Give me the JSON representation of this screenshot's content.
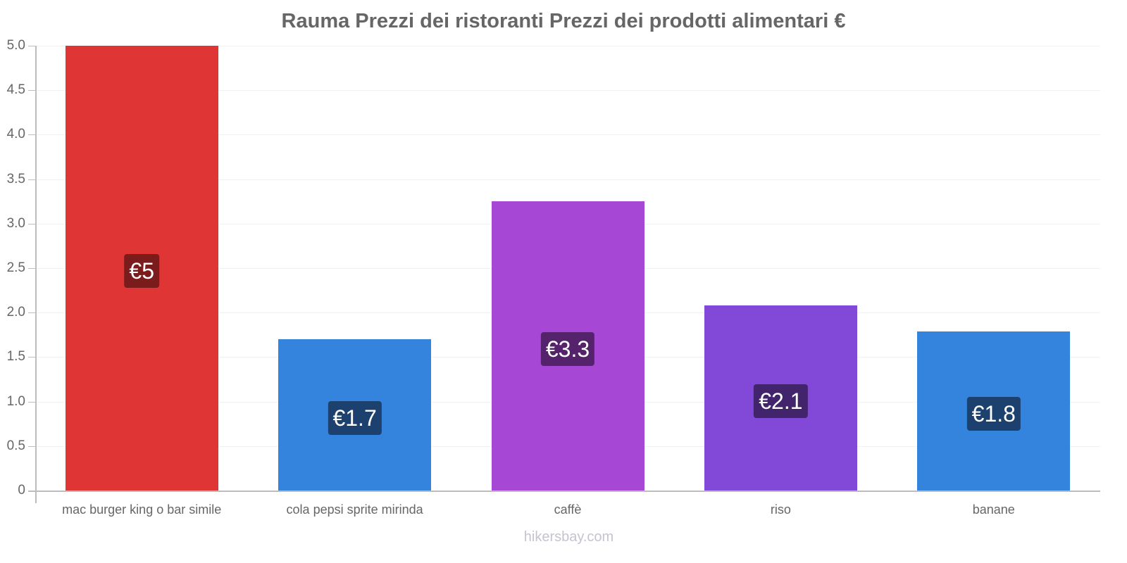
{
  "chart_data": {
    "type": "bar",
    "title": "Rauma Prezzi dei ristoranti Prezzi dei prodotti alimentari €",
    "categories": [
      "mac burger king o bar simile",
      "cola pepsi sprite mirinda",
      "caffè",
      "riso",
      "banane"
    ],
    "values": [
      5,
      1.7,
      3.25,
      2.08,
      1.79
    ],
    "value_labels": [
      "€5",
      "€1.7",
      "€3.3",
      "€2.1",
      "€1.8"
    ],
    "colors": [
      "#e03535",
      "#3483dc",
      "#a747d6",
      "#8249d8",
      "#3483dc"
    ],
    "label_bg_colors": [
      "#7a1c1c",
      "#1d416e",
      "#54236b",
      "#41246c",
      "#1d416e"
    ],
    "xlabel": "",
    "ylabel": "",
    "ylim": [
      0,
      5
    ],
    "yticks": [
      "0",
      "0.5",
      "1.0",
      "1.5",
      "2.0",
      "2.5",
      "3.0",
      "3.5",
      "4.0",
      "4.5",
      "5.0"
    ],
    "grid": true,
    "legend": "none"
  },
  "watermark": "hikersbay.com"
}
